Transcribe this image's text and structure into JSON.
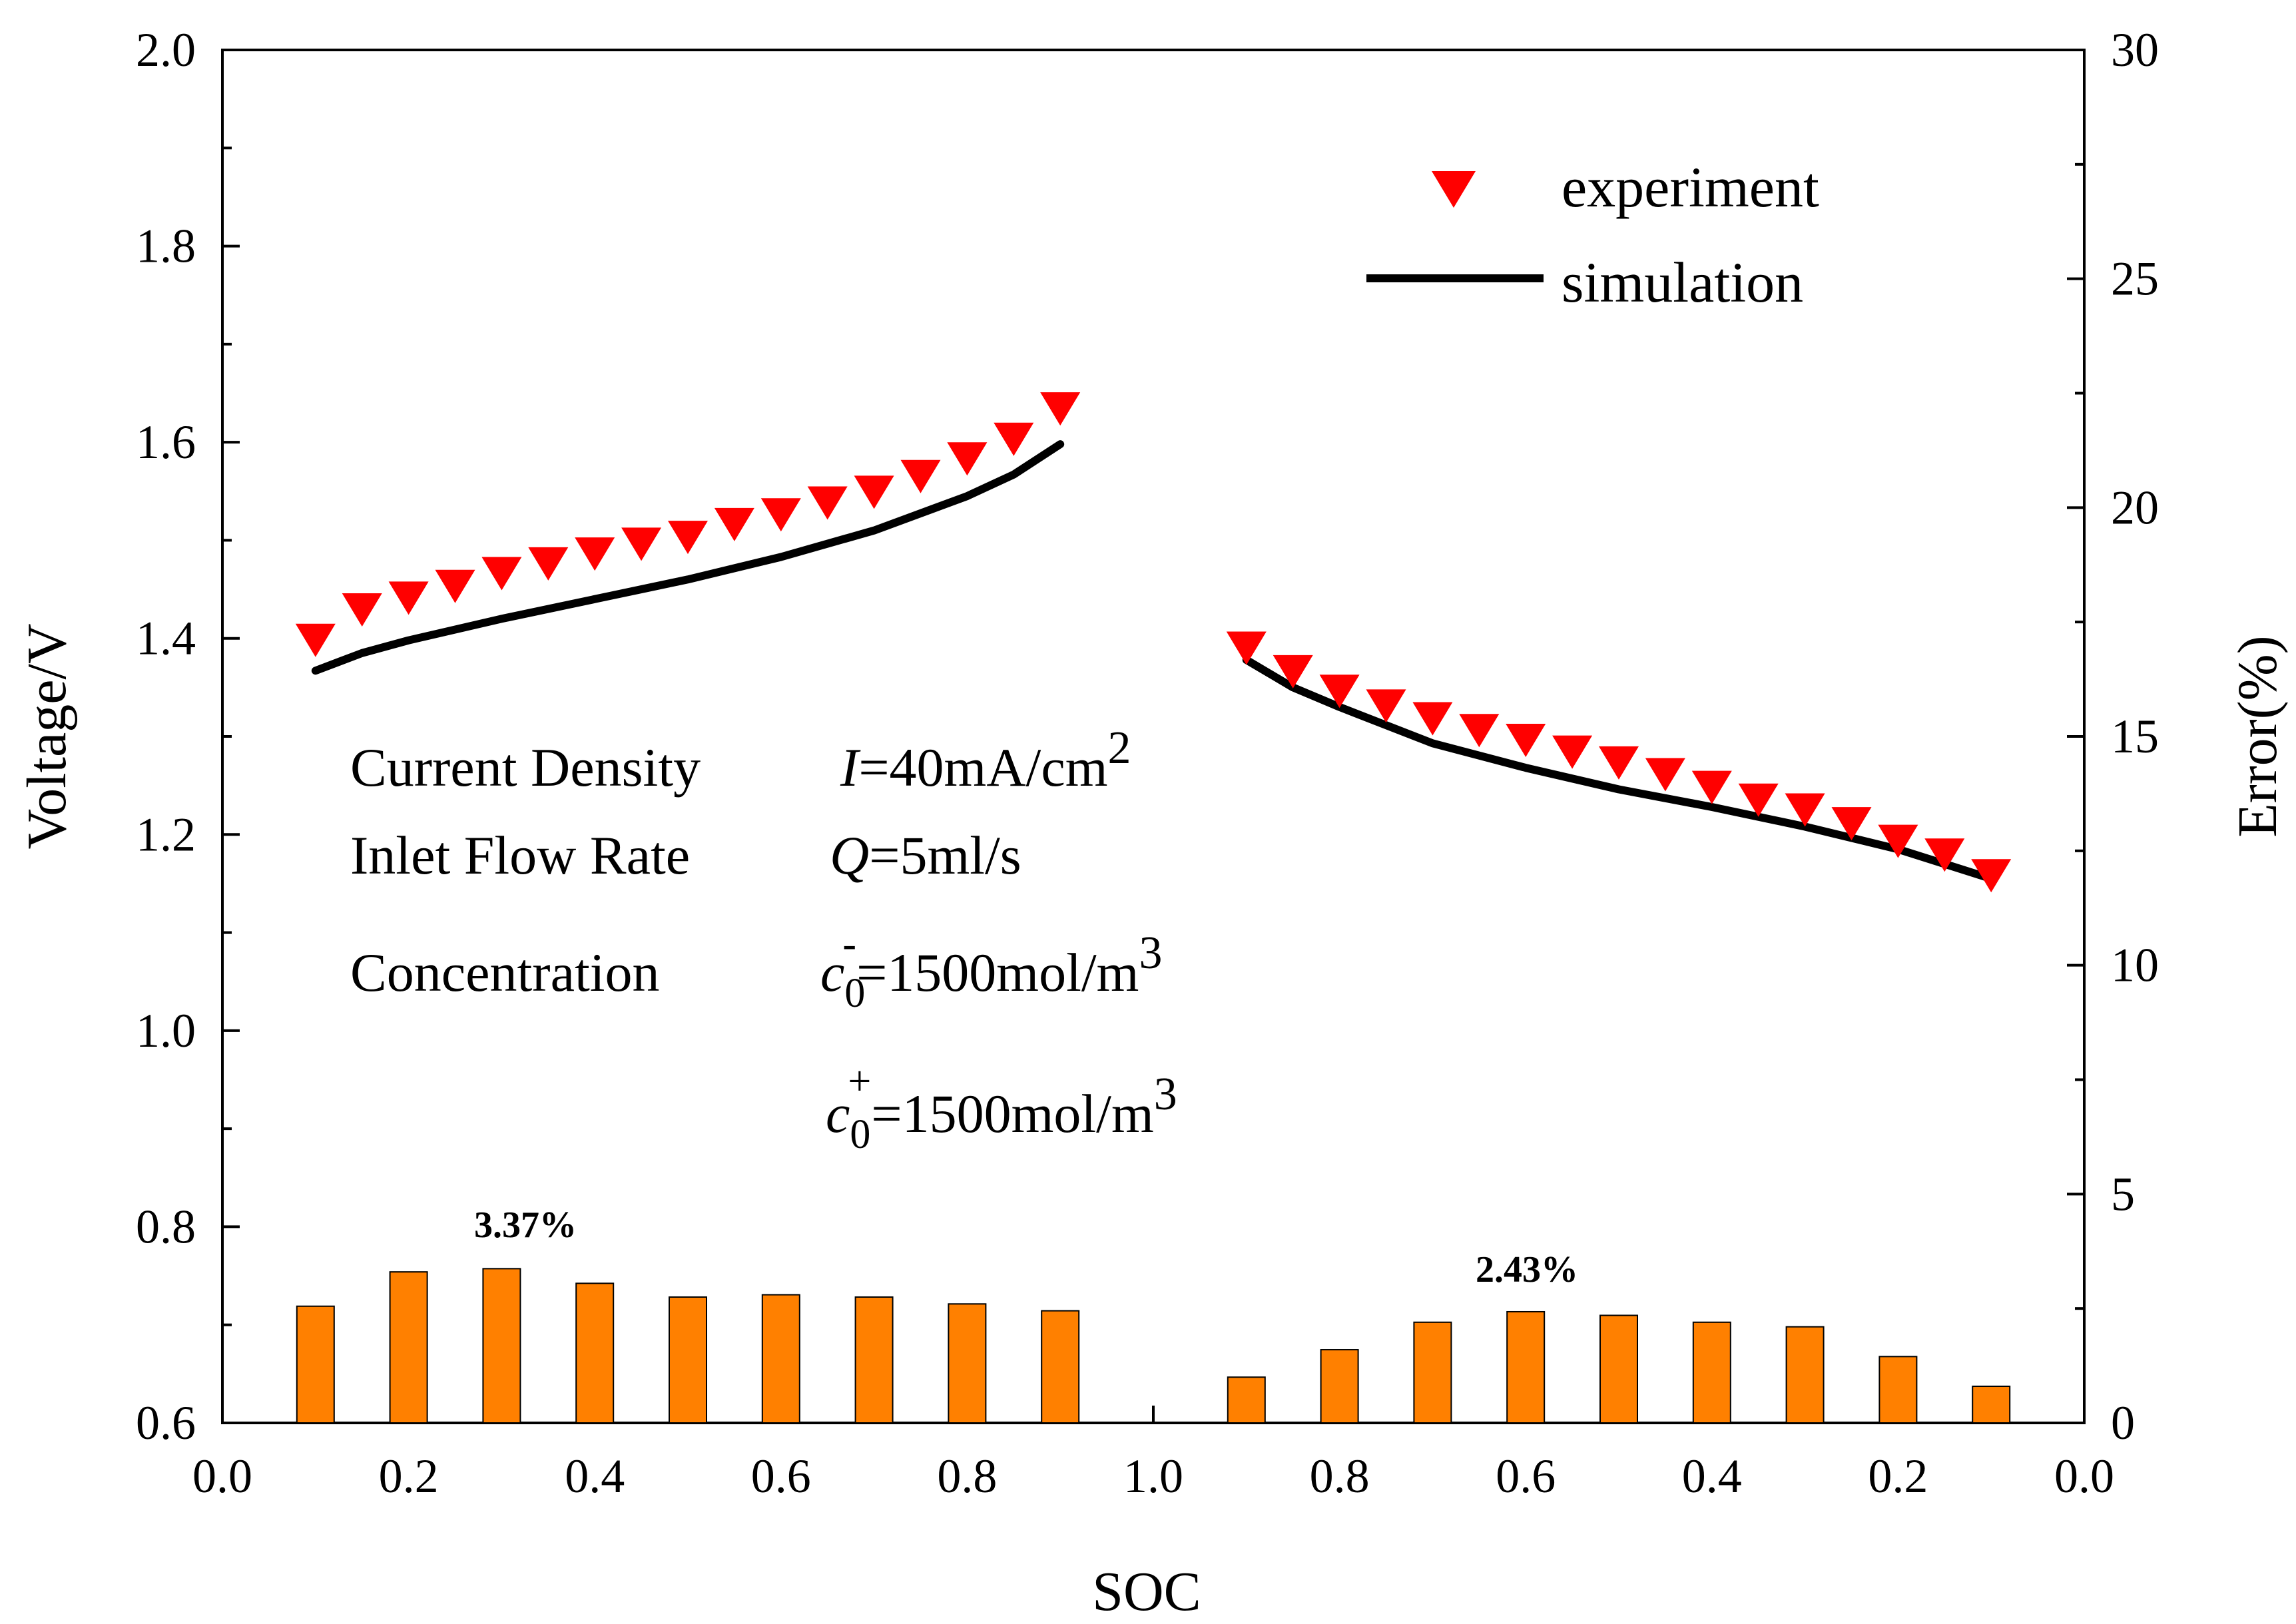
{
  "chart_data": {
    "type": "bar+scatter+line",
    "xlabel": "SOC",
    "ylabel_left": "Voltage/V",
    "ylabel_right": "Error(%)",
    "left_axis": {
      "range": [
        0.6,
        2.0
      ],
      "ticks": [
        "0.6",
        "0.8",
        "1.0",
        "1.2",
        "1.4",
        "1.6",
        "1.8",
        "2.0"
      ]
    },
    "right_axis": {
      "range": [
        0,
        30
      ],
      "ticks": [
        "0",
        "5",
        "10",
        "15",
        "20",
        "25",
        "30"
      ]
    },
    "x_tick_labels": [
      "0.0",
      "0.2",
      "0.4",
      "0.6",
      "0.8",
      "1.0",
      "0.8",
      "0.6",
      "0.4",
      "0.2",
      "0.0"
    ],
    "legend": [
      "experiment",
      "simulation"
    ],
    "colors": {
      "experiment": "#ff0000",
      "simulation": "#000000",
      "error_bars": "#ff8000"
    },
    "charge": {
      "experiment": {
        "soc": [
          0.1,
          0.15,
          0.2,
          0.25,
          0.3,
          0.35,
          0.4,
          0.45,
          0.5,
          0.55,
          0.6,
          0.65,
          0.7,
          0.75,
          0.8,
          0.85,
          0.9
        ],
        "voltage": [
          1.4,
          1.431,
          1.443,
          1.455,
          1.468,
          1.478,
          1.488,
          1.498,
          1.505,
          1.518,
          1.528,
          1.54,
          1.551,
          1.567,
          1.585,
          1.605,
          1.636
        ]
      },
      "simulation": {
        "soc": [
          0.1,
          0.15,
          0.2,
          0.3,
          0.4,
          0.5,
          0.6,
          0.7,
          0.8,
          0.85,
          0.9
        ],
        "voltage": [
          1.367,
          1.385,
          1.398,
          1.42,
          1.44,
          1.46,
          1.483,
          1.51,
          1.545,
          1.567,
          1.598
        ]
      },
      "error": {
        "soc": [
          0.1,
          0.2,
          0.3,
          0.4,
          0.5,
          0.6,
          0.7,
          0.8,
          0.9
        ],
        "percent": [
          2.55,
          3.3,
          3.37,
          3.05,
          2.75,
          2.8,
          2.75,
          2.6,
          2.45
        ]
      }
    },
    "discharge": {
      "experiment": {
        "soc": [
          0.9,
          0.85,
          0.8,
          0.75,
          0.7,
          0.65,
          0.6,
          0.55,
          0.5,
          0.45,
          0.4,
          0.35,
          0.3,
          0.25,
          0.2,
          0.15,
          0.1
        ],
        "voltage": [
          1.392,
          1.368,
          1.348,
          1.333,
          1.32,
          1.308,
          1.298,
          1.286,
          1.275,
          1.263,
          1.25,
          1.237,
          1.227,
          1.213,
          1.195,
          1.181,
          1.16
        ]
      },
      "simulation": {
        "soc": [
          0.9,
          0.85,
          0.8,
          0.7,
          0.6,
          0.5,
          0.4,
          0.3,
          0.2,
          0.1
        ],
        "voltage": [
          1.378,
          1.35,
          1.33,
          1.293,
          1.268,
          1.246,
          1.228,
          1.208,
          1.185,
          1.155
        ]
      },
      "error": {
        "soc": [
          0.9,
          0.8,
          0.7,
          0.6,
          0.5,
          0.4,
          0.3,
          0.2,
          0.1
        ],
        "percent": [
          1.0,
          1.6,
          2.2,
          2.43,
          2.35,
          2.2,
          2.1,
          1.45,
          0.8
        ]
      }
    },
    "bar_labels": [
      "3.37%",
      "2.43%"
    ]
  },
  "annotations": {
    "line1": {
      "name": "Current Density",
      "symbol": "I",
      "rest": "=40mA/cm",
      "sup": "2"
    },
    "line2": {
      "name": "Inlet Flow Rate",
      "symbol": "Q",
      "rest": "=5ml/s"
    },
    "line3": {
      "name": "Concentration",
      "symbol": "c",
      "sub": "0",
      "sup": "-",
      "rest": "=1500mol/m",
      "exp": "3"
    },
    "line4": {
      "symbol": "c",
      "sub": "0",
      "sup": "+",
      "rest": "=1500mol/m",
      "exp": "3"
    }
  }
}
